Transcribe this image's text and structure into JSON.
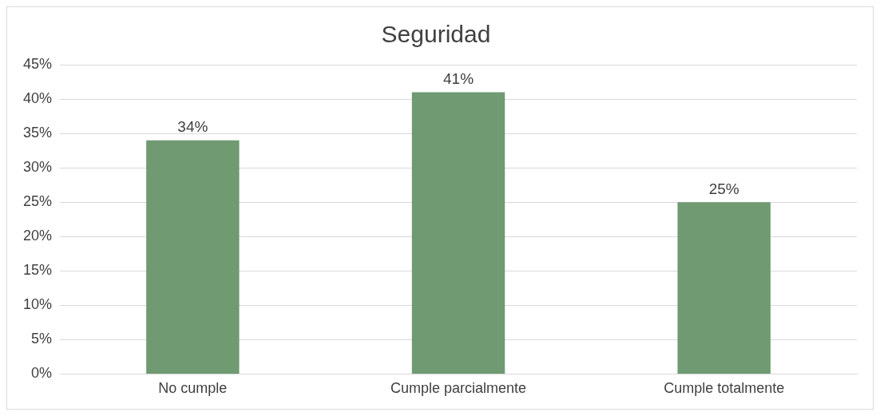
{
  "chart_data": {
    "type": "bar",
    "title": "Seguridad",
    "categories": [
      "No cumple",
      "Cumple parcialmente",
      "Cumple totalmente"
    ],
    "values": [
      34,
      41,
      25
    ],
    "color": "#6f9a72",
    "ylim": [
      0,
      45
    ],
    "yticks": [
      {
        "value": 0,
        "label": "0%"
      },
      {
        "value": 5,
        "label": "5%"
      },
      {
        "value": 10,
        "label": "10%"
      },
      {
        "value": 15,
        "label": "15%"
      },
      {
        "value": 20,
        "label": "20%"
      },
      {
        "value": 25,
        "label": "25%"
      },
      {
        "value": 30,
        "label": "30%"
      },
      {
        "value": 35,
        "label": "35%"
      },
      {
        "value": 40,
        "label": "40%"
      },
      {
        "value": 45,
        "label": "45%"
      }
    ],
    "value_labels": [
      "34%",
      "41%",
      "25%"
    ],
    "grid": "y",
    "legend": false
  }
}
